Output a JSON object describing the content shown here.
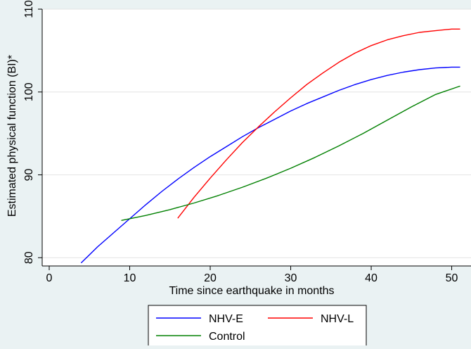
{
  "chart_data": {
    "type": "line",
    "title": "",
    "xlabel": "Time since earthquake in months",
    "ylabel": "Estimated physical function (BI)*",
    "xlim": [
      0,
      51
    ],
    "ylim": [
      79,
      110
    ],
    "xticks": [
      0,
      10,
      20,
      30,
      40,
      50
    ],
    "yticks": [
      80,
      90,
      100,
      110
    ],
    "grid": "horizontal",
    "legend_position": "bottom",
    "series": [
      {
        "name": "NHV-E",
        "color": "#0000ff",
        "x": [
          4,
          6,
          8,
          10,
          12,
          14,
          16,
          18,
          20,
          22,
          24,
          26,
          28,
          30,
          32,
          34,
          36,
          38,
          40,
          42,
          44,
          46,
          48,
          50,
          51
        ],
        "y": [
          79.4,
          81.3,
          83.0,
          84.7,
          86.4,
          88.0,
          89.5,
          90.9,
          92.2,
          93.4,
          94.6,
          95.7,
          96.7,
          97.7,
          98.6,
          99.4,
          100.2,
          100.9,
          101.5,
          102.0,
          102.4,
          102.7,
          102.9,
          103.0,
          103.0
        ]
      },
      {
        "name": "NHV-L",
        "color": "#ff0000",
        "x": [
          16,
          18,
          20,
          22,
          24,
          26,
          28,
          30,
          32,
          34,
          36,
          38,
          40,
          42,
          44,
          46,
          48,
          50,
          51
        ],
        "y": [
          84.8,
          87.3,
          89.6,
          91.8,
          93.9,
          95.8,
          97.6,
          99.3,
          100.9,
          102.3,
          103.6,
          104.7,
          105.6,
          106.3,
          106.8,
          107.2,
          107.4,
          107.6,
          107.6
        ]
      },
      {
        "name": "Control",
        "color": "#008000",
        "x": [
          9,
          12,
          15,
          18,
          21,
          24,
          27,
          30,
          33,
          36,
          39,
          42,
          45,
          48,
          51
        ],
        "y": [
          84.5,
          85.1,
          85.8,
          86.6,
          87.5,
          88.5,
          89.6,
          90.8,
          92.1,
          93.5,
          95.0,
          96.6,
          98.2,
          99.7,
          100.7
        ]
      }
    ]
  }
}
